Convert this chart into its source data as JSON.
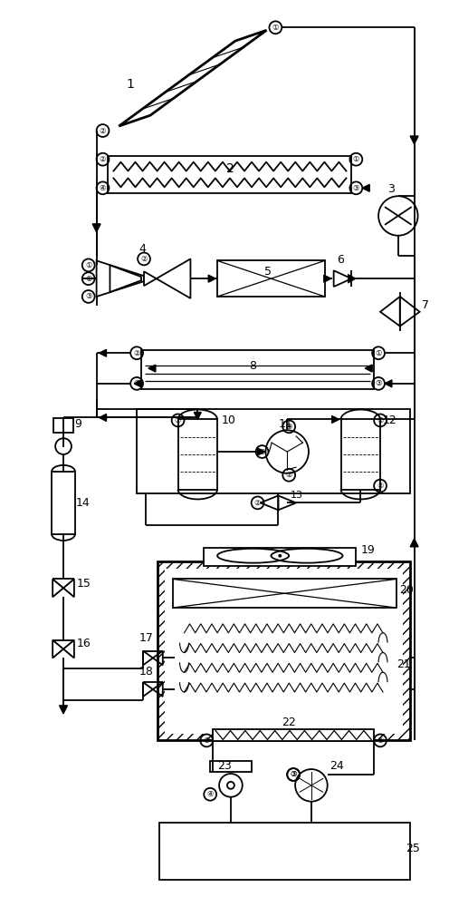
{
  "bg_color": "#ffffff",
  "line_color": "#000000",
  "fig_width": 4.96,
  "fig_height": 10.0
}
